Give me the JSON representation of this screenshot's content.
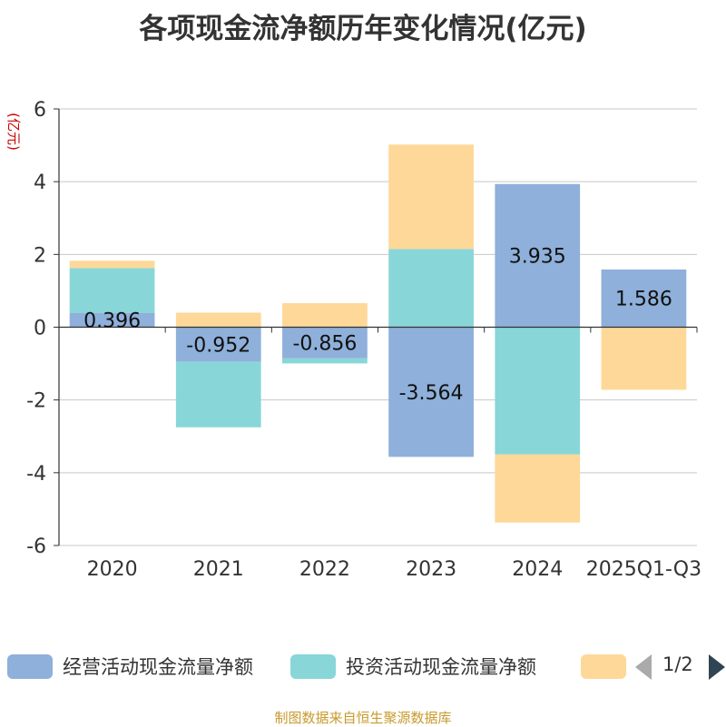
{
  "chart_data": {
    "type": "bar",
    "stacked": true,
    "title": "各项现金流净额历年变化情况(亿元)",
    "ylabel": "(亿元)",
    "xlabel": "",
    "ylim": [
      -6,
      6
    ],
    "yticks": [
      6,
      4,
      2,
      0,
      -2,
      -4,
      -6
    ],
    "categories": [
      "2020",
      "2021",
      "2022",
      "2023",
      "2024",
      "2025Q1-Q3"
    ],
    "series": [
      {
        "name": "经营活动现金流量净额",
        "color": "#8eb0da",
        "values": [
          0.396,
          -0.952,
          -0.856,
          -3.564,
          3.935,
          1.586
        ],
        "labels": [
          "0.396",
          "-0.952",
          "-0.856",
          "-3.564",
          "3.935",
          "1.586"
        ]
      },
      {
        "name": "投资活动现金流量净额",
        "color": "#88d6d8",
        "values": [
          1.23,
          -1.8,
          -0.14,
          2.15,
          -3.5,
          0.0
        ]
      },
      {
        "name": "",
        "color": "#fed898",
        "values": [
          0.2,
          0.4,
          0.66,
          2.87,
          -1.87,
          -1.72
        ]
      }
    ],
    "legend": {
      "position": "bottom",
      "page": "1/2"
    }
  },
  "source_note": "制图数据来自恒生聚源数据库",
  "colors": {
    "axis": "#333333",
    "grid": "#c8c8c8",
    "title": "#333333",
    "ylabel": "#cc0000",
    "source": "#c89a2c"
  }
}
